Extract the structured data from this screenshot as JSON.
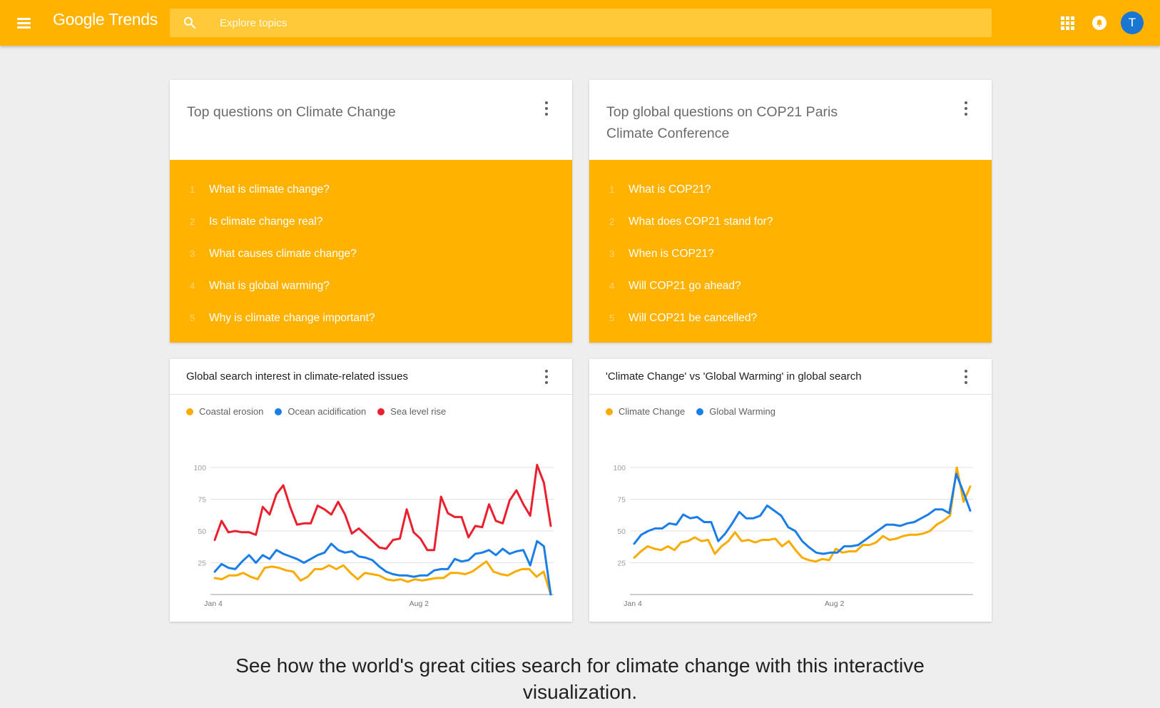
{
  "header": {
    "logo_google": "Google",
    "logo_trends": "Trends",
    "search_placeholder": "Explore topics",
    "avatar_letter": "T"
  },
  "cards": {
    "questions_climate": {
      "title": "Top questions on Climate Change",
      "items": [
        {
          "num": "1",
          "text": "What is climate change?"
        },
        {
          "num": "2",
          "text": "Is climate change real?"
        },
        {
          "num": "3",
          "text": "What causes climate change?"
        },
        {
          "num": "4",
          "text": "What is global warming?"
        },
        {
          "num": "5",
          "text": "Why is climate change important?"
        }
      ]
    },
    "questions_cop21": {
      "title": "Top global questions on COP21 Paris Climate Conference",
      "items": [
        {
          "num": "1",
          "text": "What is COP21?"
        },
        {
          "num": "2",
          "text": "What does COP21 stand for?"
        },
        {
          "num": "3",
          "text": "When is COP21?"
        },
        {
          "num": "4",
          "text": "Will COP21 go ahead?"
        },
        {
          "num": "5",
          "text": "Will COP21 be cancelled?"
        }
      ]
    }
  },
  "colors": {
    "accent": "#ffb300",
    "blue": "#1a7ee8",
    "red": "#ec1f2e",
    "yellow": "#f9ab00"
  },
  "chart_data": [
    {
      "type": "line",
      "title": "Global search interest in climate-related issues",
      "ylim": [
        0,
        100
      ],
      "yticks": [
        "100",
        "75",
        "50",
        "25"
      ],
      "xticks": [
        {
          "label": "Jan 4",
          "index": 0
        },
        {
          "label": "Aug 2",
          "index": 30
        }
      ],
      "grid": true,
      "legend_position": "top-left",
      "series": [
        {
          "name": "Coastal erosion",
          "color": "#f9ab00",
          "values": [
            13,
            12,
            15,
            15,
            17,
            14,
            12,
            21,
            22,
            21,
            19,
            18,
            11,
            14,
            20,
            20,
            23,
            20,
            23,
            17,
            12,
            17,
            16,
            15,
            12,
            11,
            12,
            10,
            12,
            11,
            12,
            13,
            13,
            17,
            17,
            16,
            18,
            22,
            26,
            18,
            16,
            15,
            18,
            20,
            20,
            14,
            18,
            0
          ]
        },
        {
          "name": "Ocean acidification",
          "color": "#1a7ee8",
          "values": [
            18,
            24,
            21,
            20,
            26,
            31,
            25,
            31,
            28,
            35,
            32,
            30,
            28,
            25,
            28,
            31,
            33,
            40,
            35,
            33,
            34,
            30,
            29,
            27,
            22,
            18,
            16,
            15,
            15,
            14,
            15,
            15,
            19,
            20,
            20,
            28,
            26,
            27,
            32,
            33,
            35,
            31,
            36,
            32,
            34,
            35,
            23,
            42,
            38,
            0
          ]
        },
        {
          "name": "Sea level rise",
          "color": "#ec1f2e",
          "values": [
            43,
            58,
            49,
            50,
            49,
            49,
            47,
            69,
            63,
            79,
            86,
            69,
            55,
            56,
            56,
            70,
            67,
            63,
            73,
            63,
            48,
            52,
            47,
            42,
            37,
            36,
            43,
            44,
            67,
            49,
            44,
            35,
            35,
            77,
            64,
            61,
            61,
            45,
            54,
            53,
            71,
            58,
            56,
            74,
            82,
            71,
            62,
            102,
            88,
            54
          ]
        }
      ]
    },
    {
      "type": "line",
      "title": "'Climate Change' vs 'Global Warming' in global search",
      "ylim": [
        0,
        100
      ],
      "yticks": [
        "100",
        "75",
        "50",
        "25"
      ],
      "xticks": [
        {
          "label": "Jan 4",
          "index": 0
        },
        {
          "label": "Aug 2",
          "index": 30
        }
      ],
      "grid": true,
      "legend_position": "top-left",
      "series": [
        {
          "name": "Climate Change",
          "color": "#f9ab00",
          "values": [
            29,
            34,
            38,
            36,
            35,
            38,
            35,
            41,
            42,
            45,
            42,
            43,
            32,
            38,
            42,
            49,
            42,
            43,
            41,
            43,
            43,
            44,
            38,
            42,
            35,
            29,
            27,
            26,
            28,
            27,
            36,
            33,
            34,
            34,
            39,
            39,
            41,
            46,
            43,
            44,
            46,
            47,
            47,
            48,
            50,
            55,
            58,
            62,
            100,
            73,
            85
          ]
        },
        {
          "name": "Global Warming",
          "color": "#1a7ee8",
          "values": [
            40,
            47,
            50,
            52,
            52,
            56,
            55,
            63,
            60,
            61,
            57,
            57,
            42,
            48,
            56,
            65,
            60,
            60,
            62,
            70,
            66,
            62,
            53,
            50,
            42,
            37,
            33,
            32,
            33,
            33,
            38,
            38,
            39,
            43,
            47,
            51,
            55,
            55,
            54,
            56,
            57,
            60,
            63,
            67,
            67,
            64,
            95,
            81,
            66
          ]
        }
      ]
    }
  ],
  "bottom": {
    "text": "See how the world's great cities search for climate change with this interactive visualization."
  }
}
